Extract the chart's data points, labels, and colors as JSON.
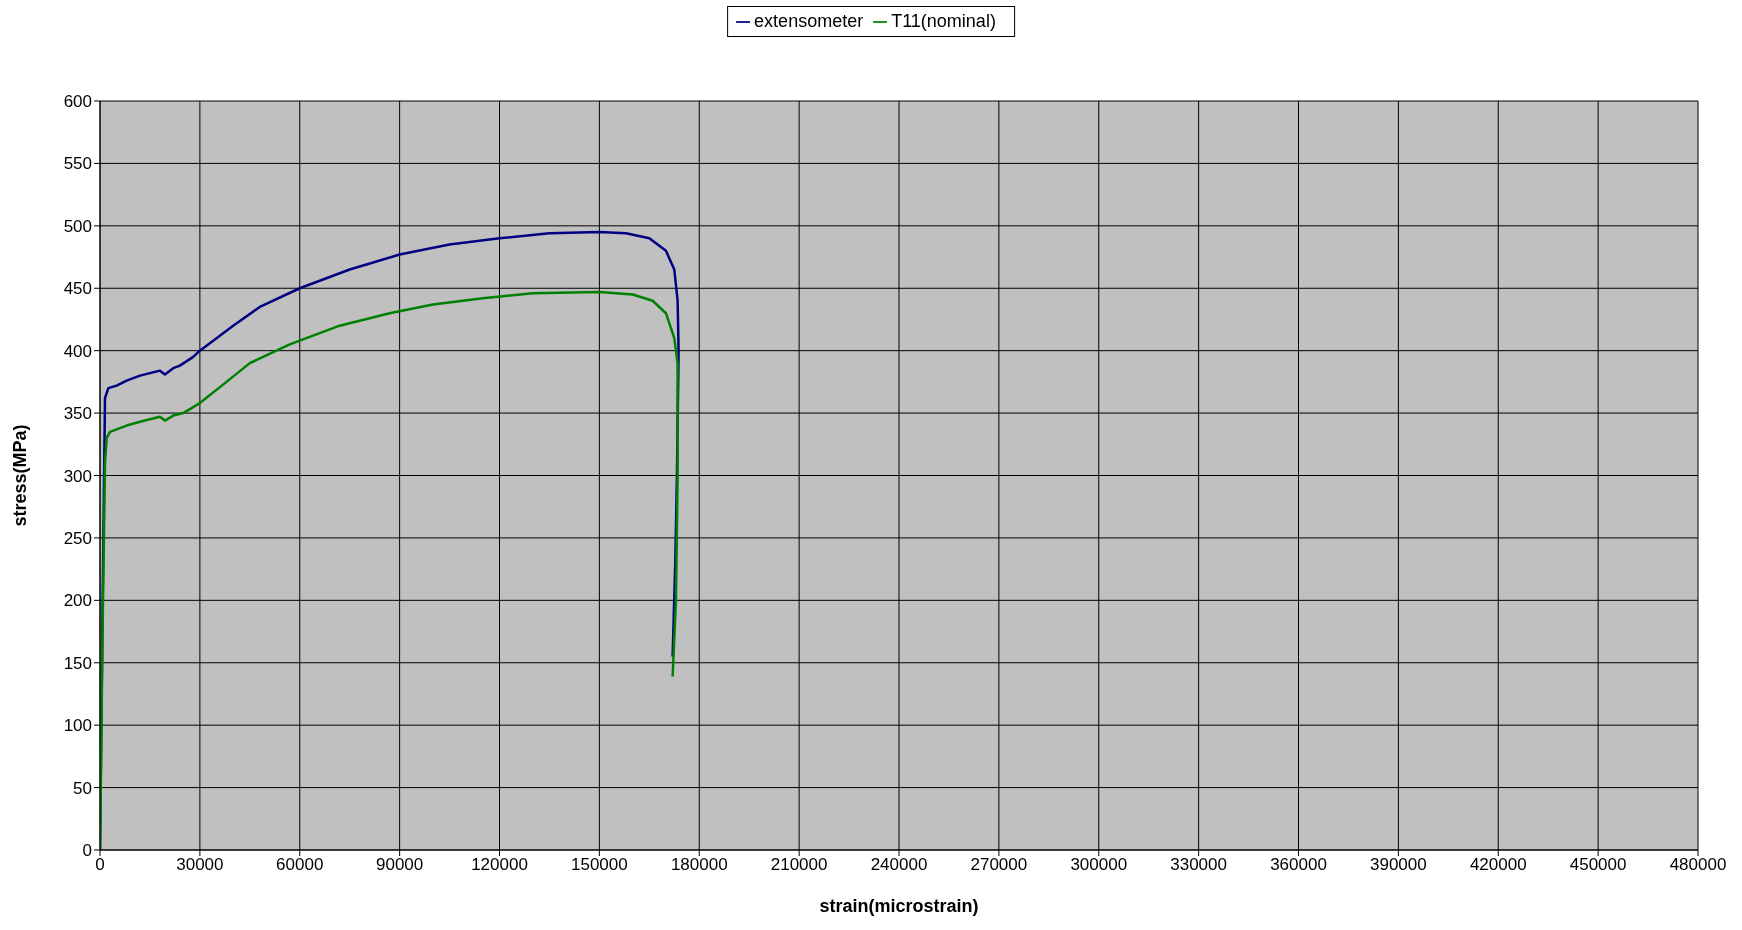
{
  "chart_data": {
    "type": "line",
    "xlabel": "strain(microstrain)",
    "ylabel": "stress(MPa)",
    "xlim": [
      0,
      480000
    ],
    "xticks": [
      0,
      30000,
      60000,
      90000,
      120000,
      150000,
      180000,
      210000,
      240000,
      270000,
      300000,
      330000,
      360000,
      390000,
      420000,
      450000,
      480000
    ],
    "ylim": [
      0,
      600
    ],
    "yticks": [
      0,
      50,
      100,
      150,
      200,
      250,
      300,
      350,
      400,
      450,
      500,
      550,
      600
    ],
    "grid": true,
    "legend": "top",
    "marker": "none",
    "line_style": "solid",
    "series": [
      {
        "name": "extensometer",
        "color": "#000080",
        "x": [
          0,
          800,
          1500,
          2500,
          5000,
          8000,
          12000,
          15000,
          18000,
          19500,
          22000,
          24000,
          28000,
          30000,
          35000,
          40000,
          48000,
          60000,
          75000,
          90000,
          105000,
          120000,
          135000,
          150000,
          158000,
          165000,
          170000,
          172500,
          173500,
          173800,
          173300,
          172800,
          172000
        ],
        "values": [
          0,
          200,
          362,
          370,
          372,
          376,
          380,
          382,
          384,
          381,
          386,
          388,
          395,
          400,
          410,
          420,
          435,
          450,
          465,
          477,
          485,
          490,
          494,
          495,
          494,
          490,
          480,
          465,
          440,
          400,
          300,
          230,
          155
        ]
      },
      {
        "name": "T11(nominal)",
        "color": "#008000",
        "x": [
          0,
          800,
          1500,
          2000,
          3000,
          8000,
          12000,
          15000,
          18000,
          19500,
          22000,
          25000,
          30000,
          38000,
          45000,
          57000,
          72000,
          87000,
          100000,
          115000,
          130000,
          150000,
          160000,
          166000,
          170000,
          172500,
          173500,
          173500,
          173000,
          172000
        ],
        "values": [
          0,
          180,
          310,
          330,
          335,
          340,
          343,
          345,
          347,
          344,
          348,
          350,
          358,
          375,
          390,
          405,
          420,
          430,
          437,
          442,
          446,
          447,
          445,
          440,
          430,
          410,
          390,
          300,
          200,
          139
        ]
      }
    ]
  }
}
